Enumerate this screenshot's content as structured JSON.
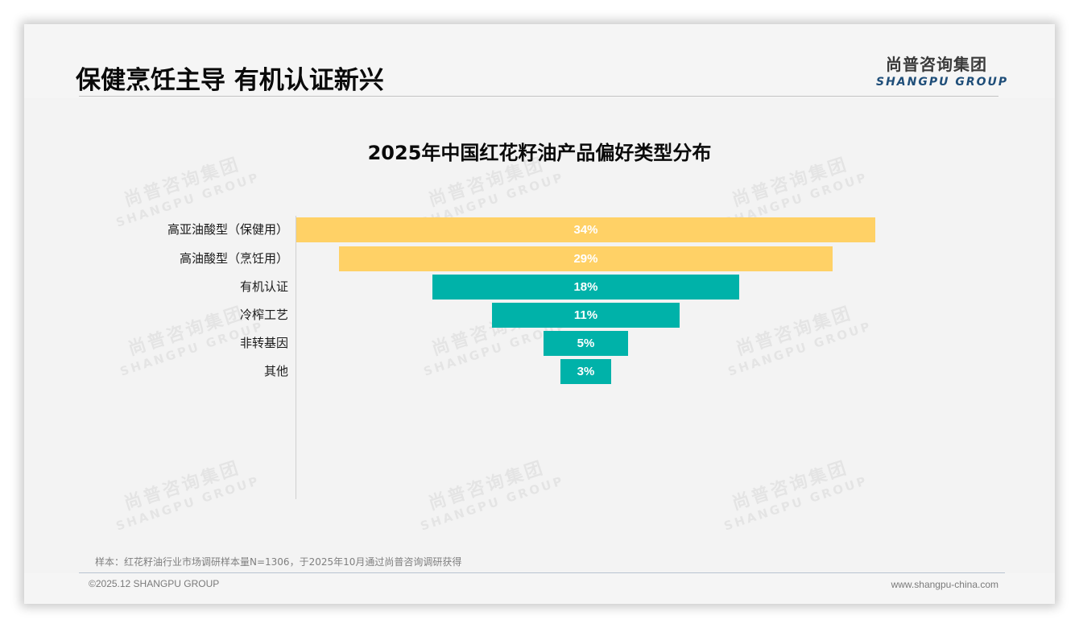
{
  "header": {
    "title": "保健烹饪主导 有机认证新兴",
    "logo_cn": "尚普咨询集团",
    "logo_en": "SHANGPU GROUP"
  },
  "watermark": {
    "cn": "尚普咨询集团",
    "en": "SHANGPU GROUP"
  },
  "colors": {
    "yellow_bar": "#ffd166",
    "teal_bar": "#00b2a9",
    "logo_blue": "#1f4e79"
  },
  "chart_data": {
    "type": "bar",
    "subtype": "funnel (centered horizontal bars)",
    "title": "2025年中国红花籽油产品偏好类型分布",
    "categories": [
      "高亚油酸型（保健用）",
      "高油酸型（烹饪用）",
      "有机认证",
      "冷榨工艺",
      "非转基因",
      "其他"
    ],
    "values": [
      34,
      29,
      18,
      11,
      5,
      3
    ],
    "value_labels": [
      "34%",
      "29%",
      "18%",
      "11%",
      "5%",
      "3%"
    ],
    "bar_colors": [
      "#ffd166",
      "#ffd166",
      "#00b2a9",
      "#00b2a9",
      "#00b2a9",
      "#00b2a9"
    ],
    "unit": "%",
    "xlabel": "",
    "ylabel": "",
    "grid": false,
    "legend": null
  },
  "footer": {
    "note": "样本：红花籽油行业市场调研样本量N=1306，于2025年10月通过尚普咨询调研获得",
    "copyright": "©2025.12 SHANGPU GROUP",
    "website": "www.shangpu-china.com"
  }
}
